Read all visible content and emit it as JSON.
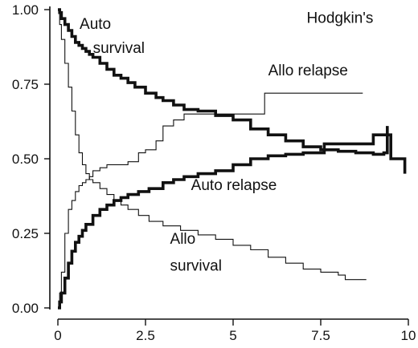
{
  "chart_data": {
    "type": "line",
    "title": "",
    "xlabel": "",
    "ylabel": "",
    "xlim": [
      0,
      10
    ],
    "ylim": [
      0,
      1
    ],
    "x_ticks": [
      {
        "value": 0,
        "label": "0"
      },
      {
        "value": 2.5,
        "label": "2.5"
      },
      {
        "value": 5,
        "label": "5"
      },
      {
        "value": 7.5,
        "label": "7.5"
      },
      {
        "value": 10,
        "label": "10"
      }
    ],
    "y_ticks": [
      {
        "value": 0,
        "label": "0.00"
      },
      {
        "value": 0.25,
        "label": "0.25"
      },
      {
        "value": 0.5,
        "label": "0.50"
      },
      {
        "value": 0.75,
        "label": "0.75"
      },
      {
        "value": 1,
        "label": "1.00"
      }
    ],
    "grid": false,
    "legend": "none",
    "annotations": [
      {
        "id": "panel-label",
        "text": "Hodgkin's",
        "x": 7.1,
        "y": 0.955
      },
      {
        "id": "auto-survival-label-1",
        "text": "Auto",
        "x": 0.62,
        "y": 0.935
      },
      {
        "id": "auto-survival-label-2",
        "text": "survival",
        "x": 1.0,
        "y": 0.855
      },
      {
        "id": "allo-relapse-label",
        "text": "Allo relapse",
        "x": 6.0,
        "y": 0.78
      },
      {
        "id": "auto-relapse-label",
        "text": "Auto relapse",
        "x": 3.8,
        "y": 0.395
      },
      {
        "id": "allo-survival-label-1",
        "text": "Allo",
        "x": 3.2,
        "y": 0.215
      },
      {
        "id": "allo-survival-label-2",
        "text": "survival",
        "x": 3.2,
        "y": 0.125
      }
    ],
    "series": [
      {
        "id": "auto-survival",
        "style": "thick",
        "x": [
          0,
          0.05,
          0.1,
          0.2,
          0.3,
          0.4,
          0.5,
          0.6,
          0.7,
          0.8,
          0.9,
          1.0,
          1.2,
          1.4,
          1.6,
          1.8,
          2.0,
          2.2,
          2.5,
          2.8,
          3.0,
          3.3,
          3.6,
          4.0,
          4.5,
          5.0,
          5.5,
          6.0,
          6.5,
          7.0,
          7.5,
          8.0,
          8.5,
          9.0,
          9.3,
          9.4,
          9.4
        ],
        "y": [
          1.0,
          0.99,
          0.97,
          0.95,
          0.93,
          0.91,
          0.89,
          0.88,
          0.87,
          0.86,
          0.85,
          0.84,
          0.82,
          0.8,
          0.78,
          0.77,
          0.755,
          0.74,
          0.72,
          0.705,
          0.695,
          0.68,
          0.665,
          0.66,
          0.645,
          0.63,
          0.6,
          0.58,
          0.56,
          0.54,
          0.53,
          0.525,
          0.52,
          0.515,
          0.52,
          0.58,
          0.61
        ]
      },
      {
        "id": "allo-relapse",
        "style": "thin",
        "x": [
          0,
          0.05,
          0.1,
          0.2,
          0.3,
          0.4,
          0.5,
          0.6,
          0.7,
          0.8,
          0.9,
          1.0,
          1.2,
          1.4,
          1.6,
          1.8,
          2.0,
          2.3,
          2.5,
          2.8,
          3.0,
          3.3,
          3.6,
          4.0,
          4.5,
          5.0,
          5.5,
          5.9,
          5.9,
          6.5,
          7.5,
          8.7
        ],
        "y": [
          0.0,
          0.05,
          0.12,
          0.25,
          0.33,
          0.36,
          0.39,
          0.41,
          0.42,
          0.43,
          0.44,
          0.46,
          0.47,
          0.48,
          0.48,
          0.48,
          0.49,
          0.52,
          0.53,
          0.56,
          0.61,
          0.63,
          0.65,
          0.65,
          0.65,
          0.65,
          0.65,
          0.66,
          0.72,
          0.72,
          0.72,
          0.72
        ]
      },
      {
        "id": "auto-relapse",
        "style": "thick",
        "x": [
          0,
          0.05,
          0.1,
          0.2,
          0.3,
          0.4,
          0.5,
          0.6,
          0.7,
          0.8,
          1.0,
          1.2,
          1.4,
          1.6,
          1.8,
          2.0,
          2.3,
          2.6,
          3.0,
          3.3,
          3.6,
          4.0,
          4.5,
          5.0,
          5.5,
          6.0,
          6.5,
          7.0,
          7.5,
          7.6,
          8.0,
          8.5,
          9.0,
          9.5,
          9.9,
          9.9
        ],
        "y": [
          0.0,
          0.02,
          0.05,
          0.1,
          0.15,
          0.19,
          0.22,
          0.24,
          0.26,
          0.28,
          0.31,
          0.33,
          0.345,
          0.36,
          0.37,
          0.38,
          0.39,
          0.4,
          0.42,
          0.43,
          0.44,
          0.45,
          0.46,
          0.48,
          0.5,
          0.51,
          0.515,
          0.52,
          0.52,
          0.55,
          0.55,
          0.55,
          0.58,
          0.5,
          0.5,
          0.45
        ]
      },
      {
        "id": "allo-survival",
        "style": "thin",
        "x": [
          0,
          0.05,
          0.1,
          0.2,
          0.3,
          0.4,
          0.5,
          0.6,
          0.7,
          0.8,
          0.9,
          1.0,
          1.2,
          1.4,
          1.6,
          1.8,
          2.0,
          2.3,
          2.6,
          3.0,
          3.5,
          4.0,
          4.5,
          5.0,
          5.5,
          6.0,
          6.5,
          7.0,
          7.5,
          8.0,
          8.2,
          8.8
        ],
        "y": [
          1.0,
          0.95,
          0.9,
          0.82,
          0.74,
          0.66,
          0.58,
          0.52,
          0.48,
          0.45,
          0.43,
          0.42,
          0.4,
          0.38,
          0.36,
          0.345,
          0.33,
          0.31,
          0.29,
          0.275,
          0.26,
          0.245,
          0.23,
          0.21,
          0.195,
          0.17,
          0.15,
          0.13,
          0.12,
          0.11,
          0.095,
          0.095
        ]
      }
    ]
  }
}
